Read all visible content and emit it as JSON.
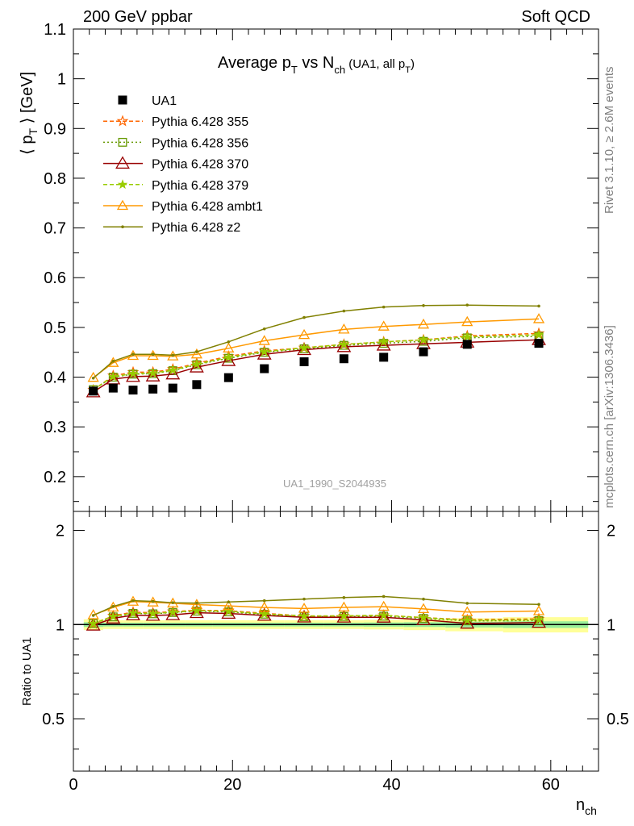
{
  "header": {
    "left": "200 GeV ppbar",
    "right": "Soft QCD"
  },
  "side_text": {
    "rivet": "Rivet 3.1.10, ≥ 2.6M events",
    "mcplots": "mcplots.cern.ch [arXiv:1306.3436]"
  },
  "chart_data": {
    "type": "scatter",
    "title": {
      "main": "Average p",
      "sub1": "T",
      "mid": " vs N",
      "sub2": "ch",
      "tail": " (UA1, all p",
      "sub3": "T",
      "close": ")"
    },
    "ylabel": {
      "open": "⟨ p",
      "sub": "T",
      "close": " ⟩ [GeV]"
    },
    "xlabel": {
      "main": "n",
      "sub": "ch"
    },
    "ratio_ylabel": "Ratio to UA1",
    "watermark": "UA1_1990_S2044935",
    "xlim": [
      0,
      66
    ],
    "ylim": [
      0.13,
      1.1
    ],
    "ratio_ylim": [
      0.34,
      2.3
    ],
    "yticks": [
      "0.2",
      "0.3",
      "0.4",
      "0.5",
      "0.6",
      "0.7",
      "0.8",
      "0.9",
      "1",
      "1.1"
    ],
    "xticks": [
      "0",
      "20",
      "40",
      "60"
    ],
    "ratio_yticks": [
      "0.5",
      "1",
      "2"
    ],
    "x": [
      2.5,
      5,
      7.5,
      10,
      12.5,
      15.5,
      19.5,
      24,
      29,
      34,
      39,
      44,
      49.5,
      58.5
    ],
    "data": {
      "name": "UA1",
      "values": [
        0.372,
        0.378,
        0.374,
        0.376,
        0.378,
        0.385,
        0.399,
        0.417,
        0.431,
        0.437,
        0.44,
        0.451,
        0.466,
        0.468
      ],
      "band_ratio": [
        0.025,
        0.02,
        0.02,
        0.02,
        0.02,
        0.02,
        0.02,
        0.02,
        0.02,
        0.02,
        0.022,
        0.025,
        0.03,
        0.035
      ]
    },
    "series": [
      {
        "name": "Pythia 6.428 355",
        "color": "#ff6600",
        "dash": "5,3",
        "marker": "star-open",
        "values": [
          0.374,
          0.403,
          0.41,
          0.41,
          0.416,
          0.428,
          0.442,
          0.453,
          0.459,
          0.466,
          0.471,
          0.475,
          0.483,
          0.488
        ]
      },
      {
        "name": "Pythia 6.428 356",
        "color": "#669900",
        "dash": "2,3",
        "marker": "square-open",
        "values": [
          0.375,
          0.4,
          0.406,
          0.407,
          0.413,
          0.425,
          0.438,
          0.45,
          0.457,
          0.464,
          0.468,
          0.472,
          0.479,
          0.482
        ]
      },
      {
        "name": "Pythia 6.428 370",
        "color": "#990000",
        "dash": "",
        "marker": "triangle-open-large",
        "values": [
          0.37,
          0.396,
          0.401,
          0.402,
          0.406,
          0.42,
          0.433,
          0.446,
          0.455,
          0.461,
          0.464,
          0.467,
          0.47,
          0.475
        ]
      },
      {
        "name": "Pythia 6.428 379",
        "color": "#99cc00",
        "dash": "5,3",
        "marker": "star-filled",
        "values": [
          0.375,
          0.401,
          0.407,
          0.408,
          0.414,
          0.426,
          0.44,
          0.451,
          0.459,
          0.466,
          0.471,
          0.475,
          0.481,
          0.485
        ]
      },
      {
        "name": "Pythia 6.428 ambt1",
        "color": "#ff9900",
        "dash": "",
        "marker": "triangle-open",
        "values": [
          0.399,
          0.429,
          0.443,
          0.443,
          0.442,
          0.446,
          0.458,
          0.473,
          0.485,
          0.496,
          0.502,
          0.506,
          0.511,
          0.517
        ]
      },
      {
        "name": "Pythia 6.428 z2",
        "color": "#808000",
        "dash": "",
        "marker": "dot",
        "values": [
          0.398,
          0.432,
          0.446,
          0.446,
          0.444,
          0.451,
          0.471,
          0.497,
          0.52,
          0.533,
          0.541,
          0.544,
          0.545,
          0.543
        ]
      }
    ],
    "grid": false,
    "legend_position": "top-left"
  }
}
